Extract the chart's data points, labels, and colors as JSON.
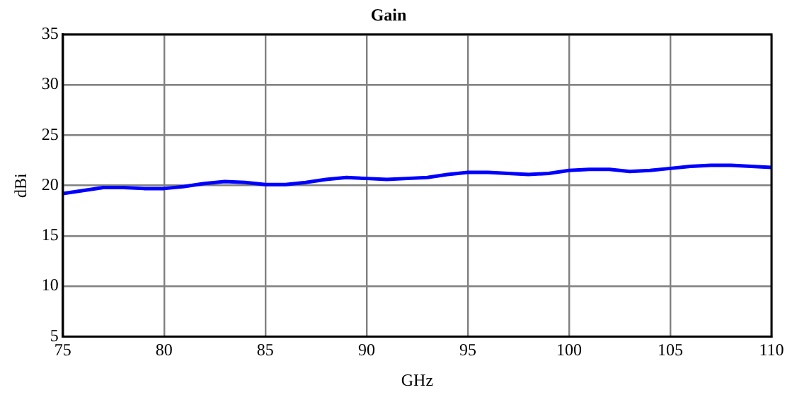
{
  "chart_data": {
    "type": "line",
    "title": "Gain",
    "xlabel": "GHz",
    "ylabel": "dBi",
    "x": [
      75,
      76,
      77,
      78,
      79,
      80,
      81,
      82,
      83,
      84,
      85,
      86,
      87,
      88,
      89,
      90,
      91,
      92,
      93,
      94,
      95,
      96,
      97,
      98,
      99,
      100,
      101,
      102,
      103,
      104,
      105,
      106,
      107,
      108,
      109,
      110
    ],
    "series": [
      {
        "color": "#0000ff",
        "values": [
          19.2,
          19.5,
          19.8,
          19.8,
          19.7,
          19.7,
          19.9,
          20.2,
          20.4,
          20.3,
          20.1,
          20.1,
          20.3,
          20.6,
          20.8,
          20.7,
          20.6,
          20.7,
          20.8,
          21.1,
          21.3,
          21.3,
          21.2,
          21.1,
          21.2,
          21.5,
          21.6,
          21.6,
          21.4,
          21.5,
          21.7,
          21.9,
          22.0,
          22.0,
          21.9,
          21.8
        ]
      }
    ],
    "xlim": [
      75,
      110
    ],
    "xticks": [
      75,
      80,
      85,
      90,
      95,
      100,
      105,
      110
    ],
    "ylim": [
      5,
      35
    ],
    "yticks": [
      5,
      10,
      15,
      20,
      25,
      30,
      35
    ],
    "grid": true,
    "legend": false,
    "marker": "none",
    "line_style": "solid"
  }
}
